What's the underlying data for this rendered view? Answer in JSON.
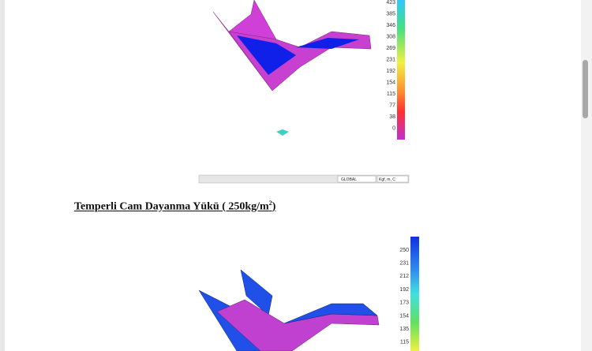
{
  "figure_1": {
    "scale_labels": [
      423,
      385,
      346,
      308,
      269,
      231,
      192,
      154,
      115,
      77,
      38,
      0
    ],
    "status_bar": {
      "coordinate_system": "GLOBAL",
      "units": "Kgf, m, C"
    }
  },
  "heading": {
    "text": "Temperli Cam Dayanma Yükü ( 250kg/m",
    "superscript": "2",
    "closing": ")"
  },
  "figure_2": {
    "scale_labels": [
      250,
      231,
      212,
      192,
      173,
      154,
      135,
      115
    ]
  }
}
